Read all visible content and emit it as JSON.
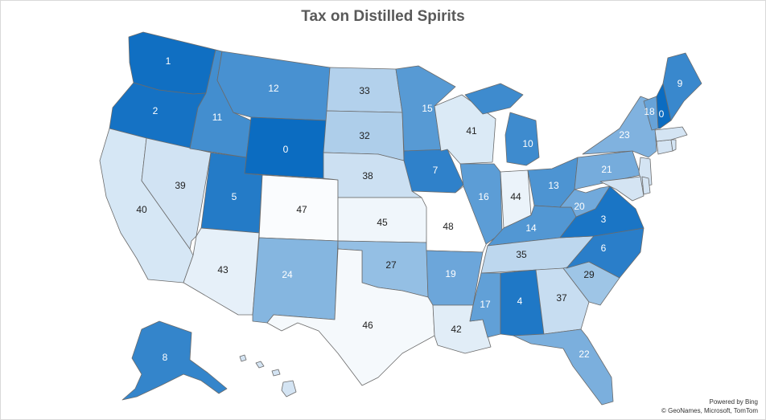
{
  "title": "Tax on Distilled Spirits",
  "credit": {
    "line1": "Powered by Bing",
    "line2": "© GeoNames, Microsoft, TomTom"
  },
  "palette": {
    "darkest": "#0b6cc1",
    "lightest": "#ffffff",
    "outline": "#6b6b6b"
  },
  "chart_data": {
    "type": "choropleth",
    "title": "Tax on Distilled Spirits",
    "regions": [
      {
        "state": "Washington",
        "value": 1
      },
      {
        "state": "Oregon",
        "value": 2
      },
      {
        "state": "Idaho",
        "value": 11
      },
      {
        "state": "Montana",
        "value": 12
      },
      {
        "state": "Wyoming",
        "value": 0
      },
      {
        "state": "North Dakota",
        "value": 33
      },
      {
        "state": "South Dakota",
        "value": 32
      },
      {
        "state": "Nebraska",
        "value": 38
      },
      {
        "state": "Kansas",
        "value": 45
      },
      {
        "state": "Oklahoma",
        "value": 27
      },
      {
        "state": "Texas",
        "value": 46
      },
      {
        "state": "Colorado",
        "value": 47
      },
      {
        "state": "Utah",
        "value": 5
      },
      {
        "state": "Nevada",
        "value": 39
      },
      {
        "state": "California",
        "value": 40
      },
      {
        "state": "Arizona",
        "value": 43
      },
      {
        "state": "New Mexico",
        "value": 24
      },
      {
        "state": "Minnesota",
        "value": 15
      },
      {
        "state": "Iowa",
        "value": 7
      },
      {
        "state": "Missouri",
        "value": 48
      },
      {
        "state": "Arkansas",
        "value": 19
      },
      {
        "state": "Louisiana",
        "value": 42
      },
      {
        "state": "Wisconsin",
        "value": 41
      },
      {
        "state": "Illinois",
        "value": 16
      },
      {
        "state": "Michigan",
        "value": 10
      },
      {
        "state": "Indiana",
        "value": 44
      },
      {
        "state": "Ohio",
        "value": 13
      },
      {
        "state": "Kentucky",
        "value": 14
      },
      {
        "state": "Tennessee",
        "value": 35
      },
      {
        "state": "Mississippi",
        "value": 17
      },
      {
        "state": "Alabama",
        "value": 4
      },
      {
        "state": "Georgia",
        "value": 37
      },
      {
        "state": "Florida",
        "value": 22
      },
      {
        "state": "South Carolina",
        "value": 29
      },
      {
        "state": "North Carolina",
        "value": 6
      },
      {
        "state": "Virginia",
        "value": 3
      },
      {
        "state": "West Virginia",
        "value": 20
      },
      {
        "state": "Pennsylvania",
        "value": 21
      },
      {
        "state": "New York",
        "value": 23
      },
      {
        "state": "Vermont",
        "value": 18
      },
      {
        "state": "New Hampshire",
        "value": 0
      },
      {
        "state": "Maine",
        "value": 9
      },
      {
        "state": "Alaska",
        "value": 8
      }
    ]
  }
}
